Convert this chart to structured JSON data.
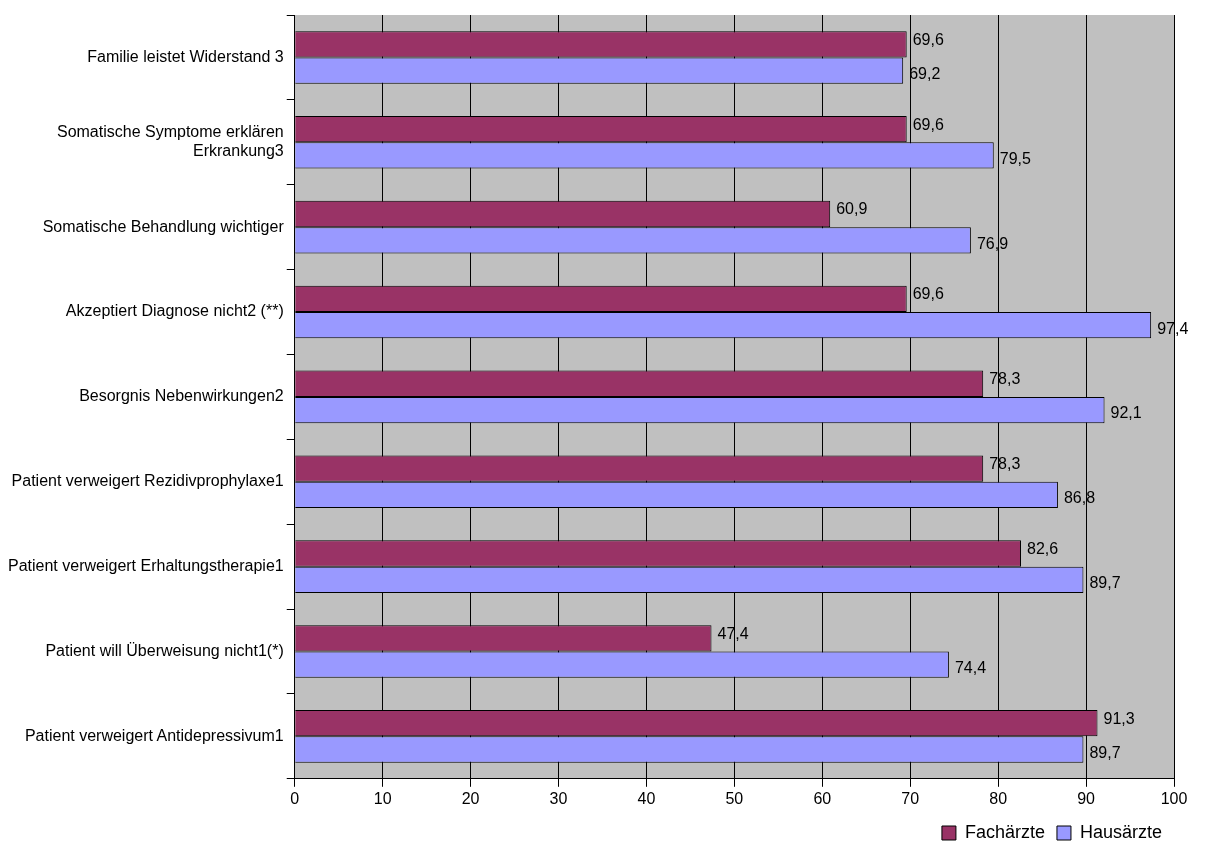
{
  "chart_data": {
    "type": "bar",
    "orientation": "horizontal",
    "categories": [
      "Familie leistet Widerstand 3",
      "Somatische Symptome erklären Erkrankung3",
      "Somatische Behandlung wichtiger",
      "Akzeptiert Diagnose nicht2 (**)",
      "Besorgnis Nebenwirkungen2",
      "Patient verweigert Rezidivprophylaxe1",
      "Patient verweigert Erhaltungstherapie1",
      "Patient will Überweisung nicht1(*)",
      "Patient verweigert Antidepressivum1"
    ],
    "series": [
      {
        "name": "Fachärzte",
        "color": "#993366",
        "values": [
          69.6,
          69.6,
          60.9,
          69.6,
          78.3,
          78.3,
          82.6,
          47.4,
          91.3
        ],
        "value_labels": [
          "69,6",
          "69,6",
          "60,9",
          "69,6",
          "78,3",
          "78,3",
          "82,6",
          "47,4",
          "91,3"
        ]
      },
      {
        "name": "Hausärzte",
        "color": "#9999ff",
        "values": [
          69.2,
          79.5,
          76.9,
          97.4,
          92.1,
          86.8,
          89.7,
          74.4,
          89.7
        ],
        "value_labels": [
          "69,2",
          "79,5",
          "76,9",
          "97,4",
          "92,1",
          "86,8",
          "89,7",
          "74,4",
          "89,7"
        ]
      }
    ],
    "xlim": [
      0,
      100
    ],
    "xticks": [
      0,
      10,
      20,
      30,
      40,
      50,
      60,
      70,
      80,
      90,
      100
    ],
    "grid": "x",
    "legend": "bottom right"
  }
}
